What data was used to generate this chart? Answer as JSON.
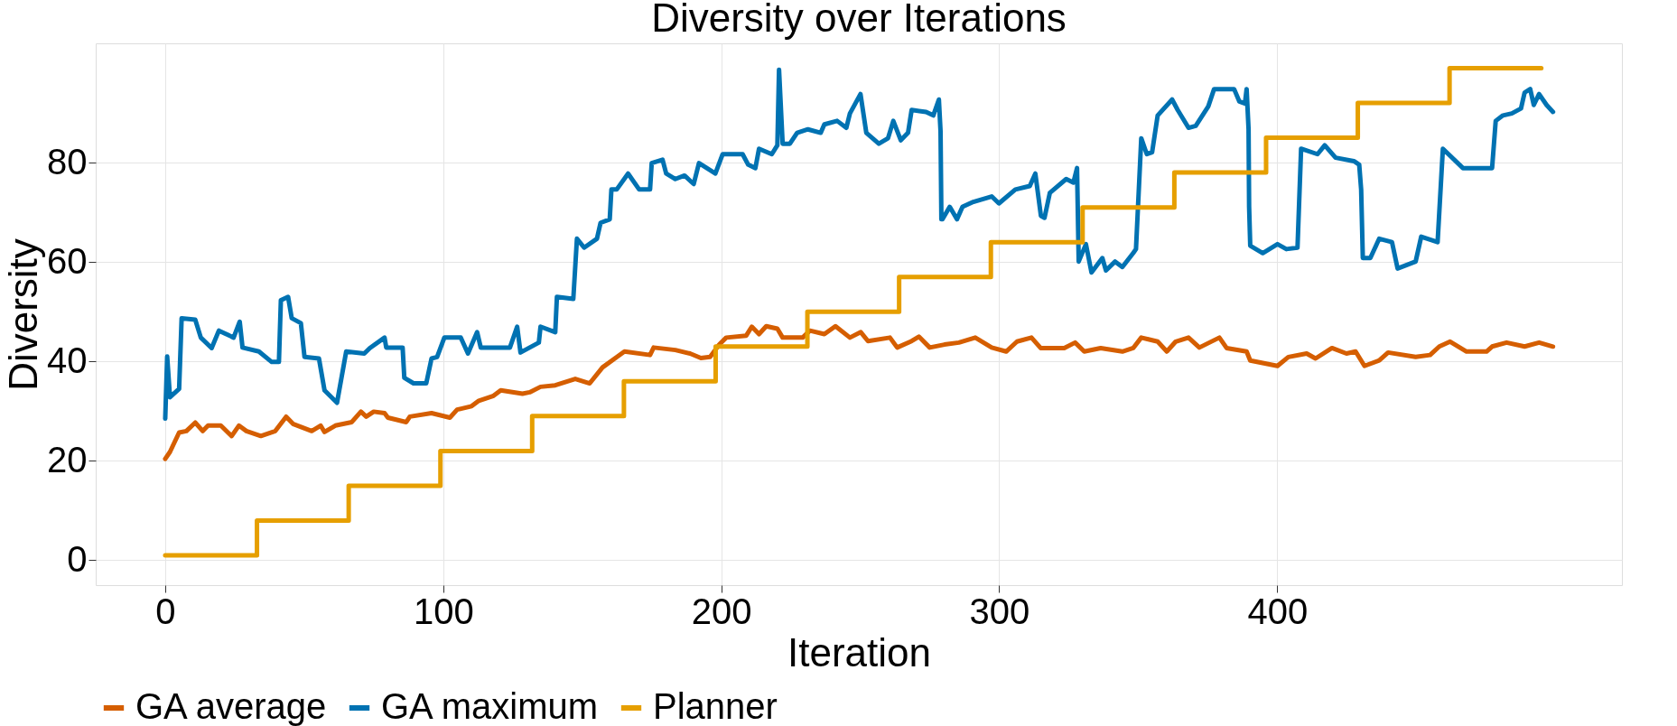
{
  "chart_data": {
    "type": "line",
    "title": "Diversity over Iterations",
    "xlabel": "Iteration",
    "ylabel": "Diversity",
    "xlim": [
      -25,
      524
    ],
    "ylim": [
      -5,
      104
    ],
    "xticks": [
      0,
      100,
      200,
      300,
      400
    ],
    "yticks": [
      0,
      20,
      40,
      60,
      80
    ],
    "grid": true,
    "legend": "bottom",
    "line_style": "solid",
    "marker": "none",
    "series": [
      {
        "name": "GA average",
        "color": "#d55e00",
        "x": [
          0,
          1.7,
          5,
          7.6,
          10.8,
          13.5,
          15.4,
          20,
          23.9,
          26.5,
          29.2,
          34.4,
          39.6,
          43.5,
          46.1,
          52.7,
          55.9,
          57.3,
          61.2,
          67.1,
          70.4,
          72.3,
          75,
          78.9,
          80.1,
          86.7,
          88,
          95.8,
          102.4,
          105,
          110.2,
          112.8,
          118.1,
          120.7,
          128.5,
          131.1,
          135,
          140.3,
          147.5,
          152.7,
          157.3,
          162.5,
          165.2,
          174.4,
          175.7,
          183.5,
          188.8,
          192.7,
          196,
          199.3,
          201.8,
          209,
          211,
          213.6,
          216.2,
          220.2,
          222.1,
          229.3,
          231.9,
          237.1,
          241.1,
          246.3,
          250.2,
          252.8,
          260.7,
          263.3,
          268.5,
          271.1,
          275,
          280.3,
          285.5,
          291.4,
          297.3,
          302.5,
          306.4,
          311.6,
          314.9,
          323.4,
          327.3,
          330.6,
          336.5,
          344.3,
          348.2,
          351.1,
          357,
          360.3,
          363.5,
          368.1,
          372,
          379.2,
          381.8,
          389,
          390.3,
          400.1,
          404,
          410.6,
          413.8,
          419.7,
          424.9,
          428.2,
          431.4,
          436.7,
          439.9,
          449.8,
          455,
          458.3,
          462.2,
          468.1,
          475.3,
          477.3,
          482.5,
          489,
          494.2,
          499.2
        ],
        "values": [
          20.4,
          21.8,
          25.7,
          26,
          27.7,
          26,
          27.1,
          27.1,
          25,
          27.1,
          26,
          25,
          26,
          28.9,
          27.4,
          26,
          27.1,
          25.8,
          27.1,
          27.8,
          29.9,
          28.9,
          29.9,
          29.6,
          28.7,
          27.8,
          28.9,
          29.6,
          28.7,
          30.3,
          31,
          32.1,
          33.1,
          34.2,
          33.5,
          33.8,
          34.9,
          35.2,
          36.5,
          35.6,
          38.8,
          40.9,
          42,
          41.3,
          42.8,
          42.3,
          41.6,
          40.7,
          40.9,
          43.4,
          44.8,
          45.2,
          47,
          45.5,
          47.1,
          46.6,
          44.8,
          44.8,
          46.2,
          45.5,
          47.1,
          44.8,
          45.9,
          44.1,
          44.8,
          42.8,
          44.1,
          45,
          42.8,
          43.4,
          43.8,
          44.8,
          42.8,
          42,
          44,
          44.8,
          42.7,
          42.7,
          43.8,
          42,
          42.7,
          42,
          42.7,
          44.8,
          44,
          42,
          44,
          44.8,
          42.8,
          44.8,
          42.7,
          42,
          40.2,
          39.1,
          40.9,
          41.6,
          40.6,
          42.7,
          41.6,
          42,
          39.1,
          40.2,
          41.8,
          40.9,
          41.3,
          43,
          44,
          42,
          42,
          43,
          43.8,
          43,
          43.8,
          43
        ]
      },
      {
        "name": "GA maximum",
        "color": "#0072b2",
        "x": [
          0,
          0.7,
          1.7,
          5,
          5.9,
          10.8,
          12.8,
          16.7,
          19.3,
          24.6,
          26.8,
          27.8,
          33.7,
          38.3,
          40.9,
          41.6,
          44.2,
          45.5,
          48.8,
          50.1,
          55.3,
          57.3,
          61.8,
          65.1,
          71.6,
          73.6,
          78.9,
          79.5,
          85.4,
          86,
          89.3,
          93.9,
          95.8,
          97.8,
          100.4,
          106.3,
          108.9,
          112.2,
          113.5,
          124,
          126.6,
          127.8,
          134.4,
          135,
          140.3,
          140.9,
          146.8,
          148.1,
          150.7,
          155.3,
          156.6,
          159.9,
          160.5,
          162.4,
          166.5,
          170.5,
          174.4,
          175,
          178.9,
          180.2,
          183.5,
          186.8,
          190.1,
          192,
          197.9,
          200.5,
          207.7,
          209.7,
          212.3,
          213.6,
          218.2,
          220.2,
          220.8,
          222.1,
          224.7,
          227.3,
          231.2,
          235.8,
          237.1,
          241.7,
          245,
          246.3,
          250.1,
          252.2,
          256.7,
          260,
          261.9,
          264.6,
          267.2,
          268.5,
          273.7,
          276.3,
          278.3,
          278.9,
          279.2,
          279.6,
          282.2,
          284.8,
          286.8,
          290.7,
          297.3,
          299.9,
          305.8,
          311,
          313,
          315,
          316.3,
          318.2,
          324.1,
          326.7,
          328,
          328.6,
          331.2,
          333.2,
          337.1,
          338.4,
          341.7,
          344.3,
          348.2,
          349.2,
          351.1,
          353.1,
          355,
          357,
          362.2,
          364.2,
          368.1,
          370.7,
          375.2,
          377.3,
          384.5,
          386.4,
          388.4,
          389,
          389.7,
          389.9,
          390.3,
          394.8,
          400.1,
          403.3,
          407.3,
          408.6,
          414.5,
          417.1,
          421,
          427.6,
          429.5,
          430.2,
          430.8,
          433.5,
          436.7,
          441.3,
          443.3,
          449.8,
          451.8,
          457.7,
          459.6,
          466.8,
          477.3,
          478.6,
          481.2,
          484.4,
          487.7,
          489,
          491,
          492.3,
          494.2,
          496.9,
          499.2
        ],
        "values": [
          28.5,
          41,
          32.8,
          34.5,
          48.7,
          48.4,
          44.8,
          42.7,
          46.2,
          44.8,
          48,
          42.8,
          42,
          39.9,
          39.9,
          52.3,
          53,
          48.7,
          47.7,
          40.9,
          40.6,
          34.2,
          31.7,
          42,
          41.6,
          42.7,
          44.8,
          42.8,
          42.8,
          36.7,
          35.6,
          35.6,
          40.6,
          40.9,
          44.8,
          44.8,
          41.6,
          45.9,
          42.8,
          42.8,
          47,
          41.8,
          43.8,
          47,
          45.9,
          53,
          52.6,
          64.7,
          62.9,
          64.7,
          67.9,
          68.6,
          74.6,
          74.6,
          77.8,
          74.6,
          74.6,
          79.9,
          80.6,
          77.8,
          76.7,
          77.4,
          75.7,
          79.9,
          77.8,
          81.7,
          81.7,
          79.6,
          78.9,
          82.8,
          81.7,
          83.5,
          98.7,
          83.8,
          83.8,
          86,
          86.7,
          86,
          87.7,
          88.4,
          87,
          89.9,
          93.8,
          86,
          83.8,
          84.9,
          88.4,
          84.5,
          86,
          90.6,
          90.2,
          89.5,
          92.7,
          86.3,
          68.6,
          68.6,
          71.1,
          68.6,
          71.1,
          72.1,
          73.2,
          71.8,
          74.6,
          75.3,
          77.8,
          69.3,
          68.9,
          73.9,
          76.7,
          76,
          78.9,
          60.1,
          63.6,
          57.9,
          60.8,
          58.3,
          60.1,
          59,
          61.8,
          62.6,
          84.9,
          81.7,
          82.1,
          89.5,
          92.7,
          90.6,
          87,
          87.4,
          91.3,
          94.8,
          94.8,
          92.3,
          91.9,
          94.8,
          86.7,
          71.1,
          63.3,
          61.8,
          63.6,
          62.6,
          62.9,
          82.8,
          81.7,
          83.5,
          81,
          80.3,
          79.6,
          74.6,
          60.8,
          60.8,
          64.7,
          64,
          58.7,
          60.1,
          65.1,
          64,
          82.8,
          78.9,
          78.9,
          88.4,
          89.5,
          89.9,
          90.9,
          94.1,
          94.8,
          91.6,
          93.8,
          91.6,
          90.2
        ]
      },
      {
        "name": "Planner",
        "color": "#e69f00",
        "type": "step",
        "x": [
          0,
          33,
          66,
          99,
          132,
          165,
          198,
          231,
          264,
          297,
          330,
          363,
          396,
          429,
          462,
          495
        ],
        "values": [
          1,
          8,
          15,
          22,
          29,
          36,
          43,
          50,
          57,
          64,
          71,
          78,
          85,
          92,
          99,
          99
        ]
      }
    ]
  }
}
